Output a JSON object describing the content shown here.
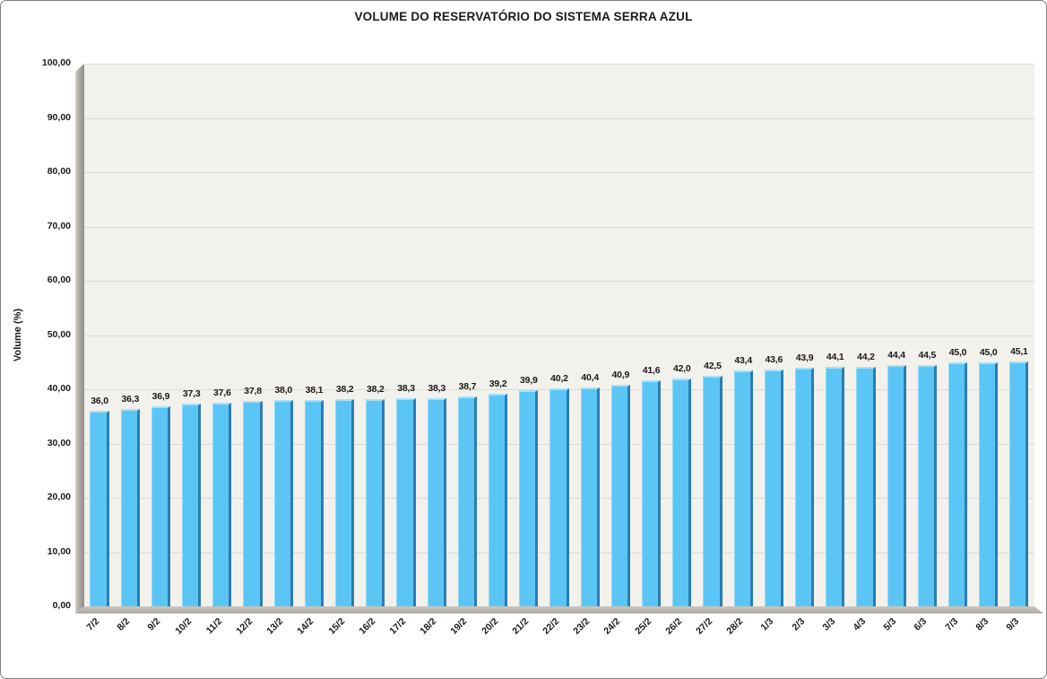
{
  "window": {
    "background": "#FFFFFF",
    "border_color": "#7F7F7F"
  },
  "chart_data": {
    "type": "bar",
    "title": "VOLUME DO RESERVATÓRIO DO SISTEMA SERRA AZUL",
    "xlabel": "",
    "ylabel": "Volume (%)",
    "ylim": [
      0,
      100
    ],
    "y_tick_interval": 10,
    "y_tick_labels": [
      "0,00",
      "10,00",
      "20,00",
      "30,00",
      "40,00",
      "50,00",
      "60,00",
      "70,00",
      "80,00",
      "90,00",
      "100,00"
    ],
    "grid": true,
    "legend": false,
    "style_3d": true,
    "categories": [
      "7/2",
      "8/2",
      "9/2",
      "10/2",
      "11/2",
      "12/2",
      "13/2",
      "14/2",
      "15/2",
      "16/2",
      "17/2",
      "18/2",
      "19/2",
      "20/2",
      "21/2",
      "22/2",
      "23/2",
      "24/2",
      "25/2",
      "26/2",
      "27/2",
      "28/2",
      "1/3",
      "2/3",
      "3/3",
      "4/3",
      "5/3",
      "6/3",
      "7/3",
      "8/3",
      "9/3"
    ],
    "values": [
      36.0,
      36.3,
      36.9,
      37.3,
      37.6,
      37.8,
      38.0,
      38.1,
      38.2,
      38.2,
      38.3,
      38.3,
      38.7,
      39.2,
      39.9,
      40.2,
      40.4,
      40.9,
      41.6,
      42.0,
      42.5,
      43.4,
      43.6,
      43.9,
      44.1,
      44.2,
      44.4,
      44.5,
      45.0,
      45.0,
      45.1
    ],
    "value_labels": [
      "36,0",
      "36,3",
      "36,9",
      "37,3",
      "37,6",
      "37,8",
      "38,0",
      "38,1",
      "38,2",
      "38,2",
      "38,3",
      "38,3",
      "38,7",
      "39,2",
      "39,9",
      "40,2",
      "40,4",
      "40,9",
      "41,6",
      "42,0",
      "42,5",
      "43,4",
      "43,6",
      "43,9",
      "44,1",
      "44,2",
      "44,4",
      "44,5",
      "45,0",
      "45,0",
      "45,1"
    ],
    "colors": {
      "bar_face": "#5BC6F6",
      "bar_side": "#2C7DB1",
      "bar_top": "#A6E0FA",
      "bar_left": "#8FD9F9",
      "plot_bg": "#F2F1EB",
      "gridline": "#DCDAD4",
      "text": "#1A1A1A"
    }
  }
}
